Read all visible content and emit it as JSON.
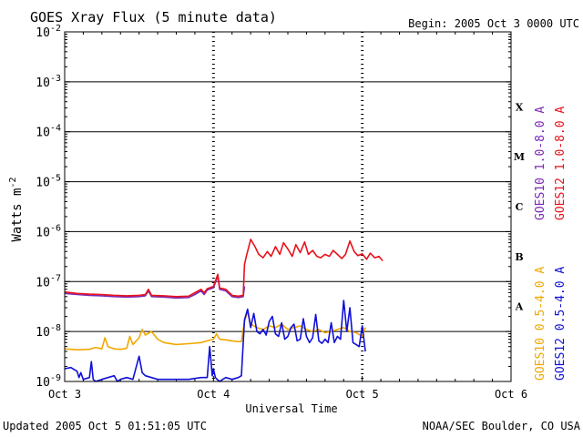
{
  "chart_data": {
    "type": "line",
    "title": "GOES Xray Flux (5 minute data)",
    "begin": "Begin:  2005 Oct 3 0000 UTC",
    "xlabel": "Universal Time",
    "ylabel": "Watts m",
    "ylabel_sup": "-2",
    "y_scale": "log",
    "ylim": [
      1e-09,
      0.01
    ],
    "xlim": [
      0,
      72
    ],
    "x_unit": "hours since 2005 Oct 3 0000 UTC",
    "x_ticks": [
      {
        "v": 0,
        "label": "Oct 3"
      },
      {
        "v": 24,
        "label": "Oct 4"
      },
      {
        "v": 48,
        "label": "Oct 5"
      },
      {
        "v": 72,
        "label": "Oct 6"
      }
    ],
    "y_ticks": [
      {
        "exp": -9,
        "base": "10",
        "sup": "-9"
      },
      {
        "exp": -8,
        "base": "10",
        "sup": "-8"
      },
      {
        "exp": -7,
        "base": "10",
        "sup": "-7"
      },
      {
        "exp": -6,
        "base": "10",
        "sup": "-6"
      },
      {
        "exp": -5,
        "base": "10",
        "sup": "-5"
      },
      {
        "exp": -4,
        "base": "10",
        "sup": "-4"
      },
      {
        "exp": -3,
        "base": "10",
        "sup": "-3"
      },
      {
        "exp": -2,
        "base": "10",
        "sup": "-2"
      }
    ],
    "flare_classes": [
      {
        "label": "A",
        "exp": -7.5
      },
      {
        "label": "B",
        "exp": -6.5
      },
      {
        "label": "C",
        "exp": -5.5
      },
      {
        "label": "M",
        "exp": -4.5
      },
      {
        "label": "X",
        "exp": -3.5
      }
    ],
    "legend": {
      "top": [
        {
          "name": "GOES10 1.0-8.0 A",
          "color": "#7b2ab5"
        },
        {
          "name": "GOES12 1.0-8.0 A",
          "color": "#e8121c"
        }
      ],
      "bottom": [
        {
          "name": "GOES10 0.5-4.0 A",
          "color": "#f0a800"
        },
        {
          "name": "GOES12 0.5-4.0 A",
          "color": "#1010d8"
        }
      ]
    },
    "series": [
      {
        "name": "GOES10 1.0-8.0 A",
        "color": "#7b2ab5",
        "x": [
          0,
          2,
          4,
          6,
          8,
          10,
          12,
          13,
          13.5,
          14,
          16,
          18,
          20,
          21,
          22,
          22.5,
          23,
          24,
          24.7,
          25,
          26,
          27,
          28,
          28.8,
          29
        ],
        "y": [
          5.8e-08,
          5.5e-08,
          5.3e-08,
          5.2e-08,
          5e-08,
          4.9e-08,
          5e-08,
          5.2e-08,
          6.5e-08,
          5e-08,
          4.9e-08,
          4.7e-08,
          4.8e-08,
          5.5e-08,
          6.5e-08,
          5.5e-08,
          6.8e-08,
          7.5e-08,
          1.3e-07,
          7e-08,
          6.5e-08,
          5e-08,
          4.8e-08,
          5e-08,
          8e-08
        ]
      },
      {
        "name": "GOES12 1.0-8.0 A",
        "color": "#e8121c",
        "x": [
          0,
          2,
          4,
          6,
          8,
          10,
          12,
          13,
          13.5,
          14,
          16,
          18,
          20,
          21,
          22,
          22.5,
          23,
          24,
          24.7,
          25,
          26,
          27,
          28,
          28.8,
          29,
          29.3,
          30,
          30.7,
          31.3,
          32,
          32.7,
          33.3,
          34,
          34.7,
          35.3,
          36,
          36.7,
          37.3,
          38,
          38.7,
          39.3,
          40,
          40.7,
          41.3,
          42,
          42.7,
          43.3,
          44,
          44.7,
          45.3,
          46,
          46.7,
          47.3,
          48,
          48.7,
          49.3,
          50,
          50.7,
          51.3
        ],
        "y": [
          6.2e-08,
          5.8e-08,
          5.6e-08,
          5.5e-08,
          5.3e-08,
          5.2e-08,
          5.3e-08,
          5.5e-08,
          7e-08,
          5.3e-08,
          5.2e-08,
          5e-08,
          5.1e-08,
          6e-08,
          7e-08,
          6e-08,
          7.2e-08,
          8e-08,
          1.4e-07,
          7.5e-08,
          7e-08,
          5.3e-08,
          5.1e-08,
          5.3e-08,
          2.2e-07,
          3.2e-07,
          7e-07,
          5e-07,
          3.5e-07,
          3e-07,
          4e-07,
          3.2e-07,
          5e-07,
          3.5e-07,
          6e-07,
          4.5e-07,
          3.2e-07,
          5.5e-07,
          3.8e-07,
          6.2e-07,
          3.5e-07,
          4.2e-07,
          3.2e-07,
          3e-07,
          3.5e-07,
          3.2e-07,
          4.2e-07,
          3.5e-07,
          2.9e-07,
          3.5e-07,
          6.5e-07,
          4e-07,
          3.3e-07,
          3.6e-07,
          2.8e-07,
          3.7e-07,
          3e-07,
          3.2e-07,
          2.6e-07
        ]
      },
      {
        "name": "GOES10 0.5-4.0 A",
        "color": "#f0a800",
        "x": [
          0,
          2,
          4,
          5,
          6,
          6.5,
          7,
          8,
          9,
          10,
          10.5,
          11,
          12,
          12.5,
          13,
          14,
          15,
          16,
          18,
          20,
          22,
          23,
          24,
          24.5,
          25,
          26,
          27,
          28,
          28.5,
          29,
          29.5,
          30,
          31,
          32,
          33,
          34,
          35,
          36,
          37,
          38,
          39,
          40,
          41,
          42,
          43,
          44,
          45,
          46,
          47,
          48,
          48.5
        ],
        "y": [
          4.5e-09,
          4.3e-09,
          4.4e-09,
          4.8e-09,
          4.5e-09,
          7.5e-09,
          5e-09,
          4.5e-09,
          4.4e-09,
          4.6e-09,
          8e-09,
          5.5e-09,
          7.5e-09,
          1.1e-08,
          8.5e-09,
          1e-08,
          7e-09,
          6e-09,
          5.5e-09,
          5.7e-09,
          6e-09,
          6.5e-09,
          7e-09,
          9e-09,
          7e-09,
          6.8e-09,
          6.5e-09,
          6.3e-09,
          6.3e-09,
          1.6e-08,
          2.5e-08,
          1.4e-08,
          1.2e-08,
          1.1e-08,
          1.3e-08,
          1.2e-08,
          1.4e-08,
          1.1e-08,
          1.2e-08,
          1.3e-08,
          1.1e-08,
          1e-08,
          1.1e-08,
          9.5e-09,
          1e-08,
          1.1e-08,
          1.2e-08,
          1e-08,
          9.5e-09,
          8e-09,
          1.2e-08
        ]
      },
      {
        "name": "GOES12 0.5-4.0 A",
        "color": "#1010d8",
        "x": [
          0,
          1,
          2,
          2.3,
          2.6,
          3,
          4,
          4.3,
          4.6,
          5,
          6,
          7,
          8,
          8.5,
          9,
          10,
          11,
          12,
          12.5,
          13,
          14,
          15,
          16,
          18,
          20,
          22,
          23,
          23.4,
          23.8,
          24,
          24.3,
          24.6,
          25,
          25.5,
          26,
          27,
          28,
          28.5,
          29,
          29.5,
          30,
          30.5,
          31,
          31.5,
          32,
          32.5,
          33,
          33.5,
          34,
          34.5,
          35,
          35.5,
          36,
          36.5,
          37,
          37.5,
          38,
          38.5,
          39,
          39.5,
          40,
          40.5,
          41,
          41.5,
          42,
          42.5,
          43,
          43.5,
          44,
          44.5,
          45,
          45.5,
          46,
          46.5,
          47,
          47.5,
          48,
          48.5
        ],
        "y": [
          1.8e-09,
          1.9e-09,
          1.6e-09,
          1.2e-09,
          1.5e-09,
          1.1e-09,
          1.2e-09,
          2.5e-09,
          1.1e-09,
          1e-09,
          1.1e-09,
          1.2e-09,
          1.3e-09,
          1e-09,
          1.1e-09,
          1.2e-09,
          1.1e-09,
          3.2e-09,
          1.5e-09,
          1.3e-09,
          1.2e-09,
          1.1e-09,
          1.1e-09,
          1.1e-09,
          1.1e-09,
          1.2e-09,
          1.2e-09,
          5e-09,
          1.3e-09,
          1.8e-09,
          1.2e-09,
          1.1e-09,
          1e-09,
          1.1e-09,
          1.2e-09,
          1.1e-09,
          1.2e-09,
          1.3e-09,
          1.7e-08,
          2.8e-08,
          1.2e-08,
          2.3e-08,
          1e-08,
          9e-09,
          1.1e-08,
          8.5e-09,
          1.6e-08,
          2e-08,
          9e-09,
          8e-09,
          1.5e-08,
          7e-09,
          8e-09,
          1.2e-08,
          1.4e-08,
          6.5e-09,
          7e-09,
          1.8e-08,
          8e-09,
          6e-09,
          7.5e-09,
          2.2e-08,
          6.5e-09,
          5.8e-09,
          7e-09,
          6e-09,
          1.5e-08,
          6e-09,
          8e-09,
          7e-09,
          4.2e-08,
          1e-08,
          3e-08,
          6e-09,
          5.5e-09,
          5e-09,
          1.3e-08,
          4e-09
        ]
      }
    ]
  },
  "footer": {
    "updated": "Updated 2005 Oct  5 01:51:05 UTC",
    "credit": "NOAA/SEC Boulder, CO USA"
  }
}
